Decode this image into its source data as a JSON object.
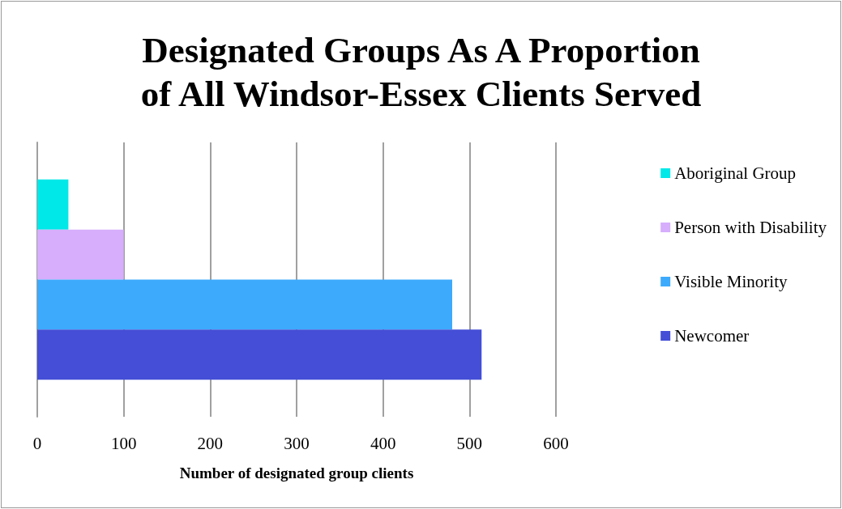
{
  "chart_data": {
    "type": "bar",
    "orientation": "horizontal",
    "title": "Designated Groups As A Proportion\nof All Windsor-Essex Clients Served",
    "xlabel": "Number of designated group clients",
    "categories": [
      null
    ],
    "series": [
      {
        "name": "Aboriginal Group",
        "color": "#00e8e8",
        "values": [
          36
        ]
      },
      {
        "name": "Person with Disability",
        "color": "#d6aefc",
        "values": [
          100
        ]
      },
      {
        "name": "Visible Minority",
        "color": "#3daafc",
        "values": [
          480
        ]
      },
      {
        "name": "Newcomer",
        "color": "#444ed6",
        "values": [
          514
        ]
      }
    ],
    "xlim": [
      0,
      600
    ],
    "xticks": [
      0,
      100,
      200,
      300,
      400,
      500,
      600
    ],
    "grid": "x",
    "legend": "right"
  }
}
